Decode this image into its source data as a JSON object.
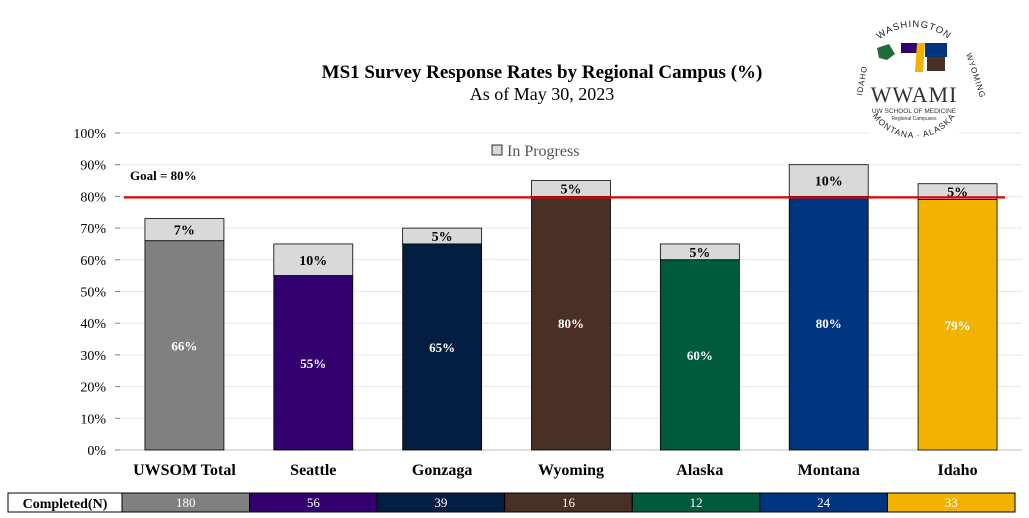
{
  "chart_data": {
    "type": "bar",
    "title": "MS1 Survey Response Rates by Regional Campus (%)",
    "subtitle": "As of May 30, 2023",
    "categories": [
      "UWSOM Total",
      "Seattle",
      "Gonzaga",
      "Wyoming",
      "Alaska",
      "Montana",
      "Idaho"
    ],
    "series": [
      {
        "name": "Completed",
        "values": [
          66,
          55,
          65,
          80,
          60,
          80,
          79
        ],
        "labels": [
          "66%",
          "55%",
          "65%",
          "80%",
          "60%",
          "80%",
          "79%"
        ]
      },
      {
        "name": "In Progress",
        "values": [
          7,
          10,
          5,
          5,
          5,
          10,
          5
        ],
        "labels": [
          "7%",
          "10%",
          "5%",
          "5%",
          "5%",
          "10%",
          "5%"
        ]
      }
    ],
    "colors": [
      "#808080",
      "#33006f",
      "#041e42",
      "#492f24",
      "#005a3c",
      "#00357f",
      "#f1b300"
    ],
    "in_progress_color": "#d9d9d9",
    "ylim": [
      0,
      100
    ],
    "yticks": [
      "0%",
      "10%",
      "20%",
      "30%",
      "40%",
      "50%",
      "60%",
      "70%",
      "80%",
      "90%",
      "100%"
    ],
    "grid": true,
    "legend": {
      "label": "In Progress",
      "placement": "top-center"
    },
    "goal": {
      "value": 80,
      "label": "Goal = 80%",
      "color": "#e00000"
    },
    "completed_n": {
      "label": "Completed(N)",
      "values": [
        "180",
        "56",
        "39",
        "16",
        "12",
        "24",
        "33"
      ]
    }
  },
  "logo": {
    "top_text": "WASHINGTON",
    "right_text": "WYOMING",
    "bottom_text": "MONTANA · ALASKA",
    "left_text": "IDAHO",
    "name": "WWAMI",
    "line1": "UW SCHOOL OF MEDICINE",
    "line2": "Regional Campuses"
  }
}
